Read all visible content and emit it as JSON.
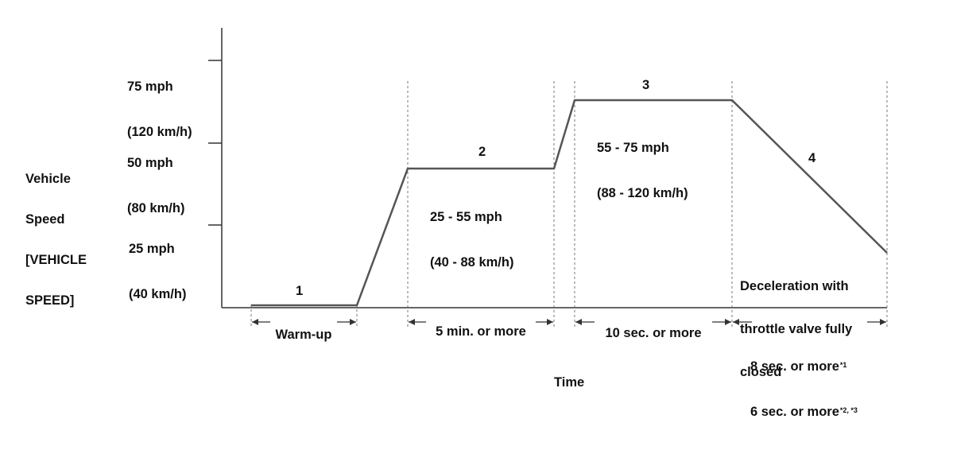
{
  "y_axis": {
    "title_lines": [
      "Vehicle",
      "Speed",
      "[VEHICLE",
      "SPEED]"
    ],
    "ticks": [
      {
        "line1": "75 mph",
        "line2": "(120 km/h)"
      },
      {
        "line1": "50 mph",
        "line2": "(80 km/h)"
      },
      {
        "line1": "25 mph",
        "line2": "(40 km/h)"
      }
    ]
  },
  "x_axis": {
    "title": "Time"
  },
  "phases": [
    {
      "number": "1",
      "duration": "Warm-up"
    },
    {
      "number": "2",
      "speed_line1": "25 - 55 mph",
      "speed_line2": "(40 - 88 km/h)",
      "duration": "5 min. or more"
    },
    {
      "number": "3",
      "speed_line1": "55 - 75 mph",
      "speed_line2": "(88 - 120 km/h)",
      "duration": "10 sec. or more"
    },
    {
      "number": "4",
      "note_lines": [
        "Deceleration with",
        "throttle valve fully",
        "closed"
      ],
      "duration_1": "8 sec. or more",
      "duration_1_mark": "*1",
      "duration_2": "6 sec. or more",
      "duration_2_mark": "*2, *3"
    }
  ],
  "colors": {
    "profile_line": "#555555",
    "axis": "#333333",
    "dashed": "#777777"
  }
}
